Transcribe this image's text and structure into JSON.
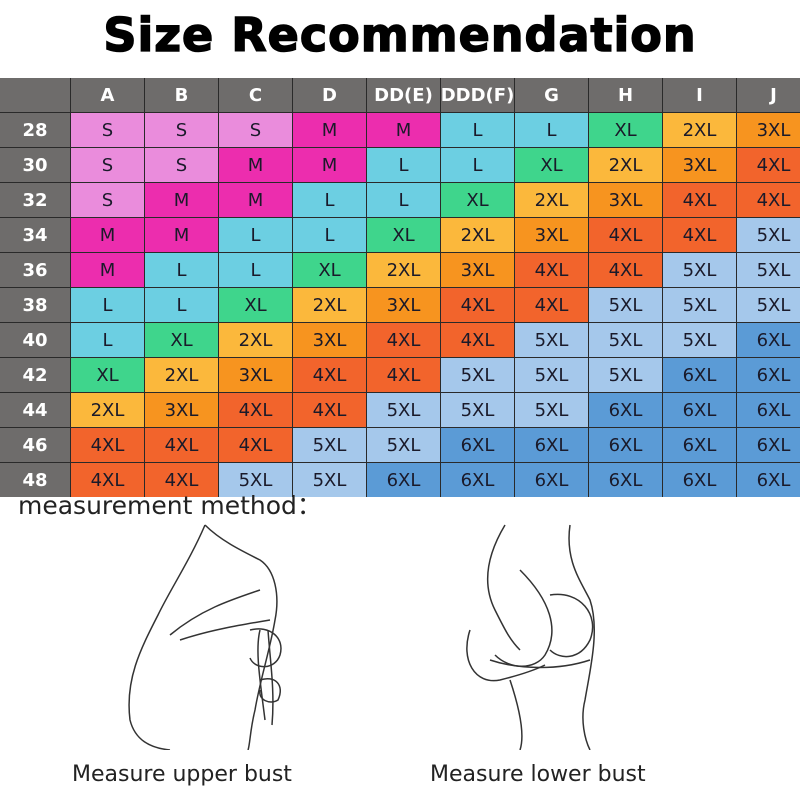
{
  "title": "Size Recommendation",
  "table": {
    "columns": [
      "A",
      "B",
      "C",
      "D",
      "DD(E)",
      "DDD(F)",
      "G",
      "H",
      "I",
      "J"
    ],
    "rows": [
      {
        "band": "28",
        "sizes": [
          "S",
          "S",
          "S",
          "M",
          "M",
          "L",
          "L",
          "XL",
          "2XL",
          "3XL"
        ]
      },
      {
        "band": "30",
        "sizes": [
          "S",
          "S",
          "M",
          "M",
          "L",
          "L",
          "XL",
          "2XL",
          "3XL",
          "4XL"
        ]
      },
      {
        "band": "32",
        "sizes": [
          "S",
          "M",
          "M",
          "L",
          "L",
          "XL",
          "2XL",
          "3XL",
          "4XL",
          "4XL"
        ]
      },
      {
        "band": "34",
        "sizes": [
          "M",
          "M",
          "L",
          "L",
          "XL",
          "2XL",
          "3XL",
          "4XL",
          "4XL",
          "5XL"
        ]
      },
      {
        "band": "36",
        "sizes": [
          "M",
          "L",
          "L",
          "XL",
          "2XL",
          "3XL",
          "4XL",
          "4XL",
          "5XL",
          "5XL"
        ]
      },
      {
        "band": "38",
        "sizes": [
          "L",
          "L",
          "XL",
          "2XL",
          "3XL",
          "4XL",
          "4XL",
          "5XL",
          "5XL",
          "5XL"
        ]
      },
      {
        "band": "40",
        "sizes": [
          "L",
          "XL",
          "2XL",
          "3XL",
          "4XL",
          "4XL",
          "5XL",
          "5XL",
          "5XL",
          "6XL"
        ]
      },
      {
        "band": "42",
        "sizes": [
          "XL",
          "2XL",
          "3XL",
          "4XL",
          "4XL",
          "5XL",
          "5XL",
          "5XL",
          "6XL",
          "6XL"
        ]
      },
      {
        "band": "44",
        "sizes": [
          "2XL",
          "3XL",
          "4XL",
          "4XL",
          "5XL",
          "5XL",
          "5XL",
          "6XL",
          "6XL",
          "6XL"
        ]
      },
      {
        "band": "46",
        "sizes": [
          "4XL",
          "4XL",
          "4XL",
          "5XL",
          "5XL",
          "6XL",
          "6XL",
          "6XL",
          "6XL",
          "6XL"
        ]
      },
      {
        "band": "48",
        "sizes": [
          "4XL",
          "4XL",
          "5XL",
          "5XL",
          "6XL",
          "6XL",
          "6XL",
          "6XL",
          "6XL",
          "6XL"
        ]
      }
    ],
    "size_colors": {
      "S": "#ea8cdc",
      "M": "#ec2dae",
      "L": "#6ccfe2",
      "XL": "#3fd58c",
      "2XL": "#fbb83c",
      "3XL": "#f7941f",
      "4XL": "#f2642c",
      "5XL": "#a5c8eb",
      "6XL": "#5b9bd6"
    },
    "header_color": "#6e6c6b"
  },
  "method": {
    "heading": "measurement method：",
    "upper_caption": "Measure upper bust",
    "lower_caption": "Measure lower bust"
  }
}
